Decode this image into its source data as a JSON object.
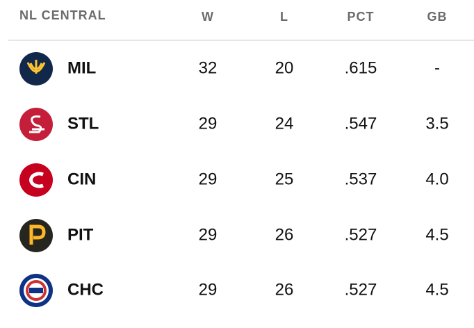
{
  "header": {
    "title": "NL CENTRAL",
    "columns": [
      "W",
      "L",
      "PCT",
      "GB"
    ]
  },
  "table": {
    "rows": [
      [
        "MIL",
        "32",
        "20",
        ".615",
        "-"
      ],
      [
        "STL",
        "29",
        "24",
        ".547",
        "3.5"
      ],
      [
        "CIN",
        "29",
        "25",
        ".537",
        "4.0"
      ],
      [
        "PIT",
        "29",
        "26",
        ".527",
        "4.5"
      ],
      [
        "CHC",
        "29",
        "26",
        ".527",
        "4.5"
      ]
    ]
  }
}
